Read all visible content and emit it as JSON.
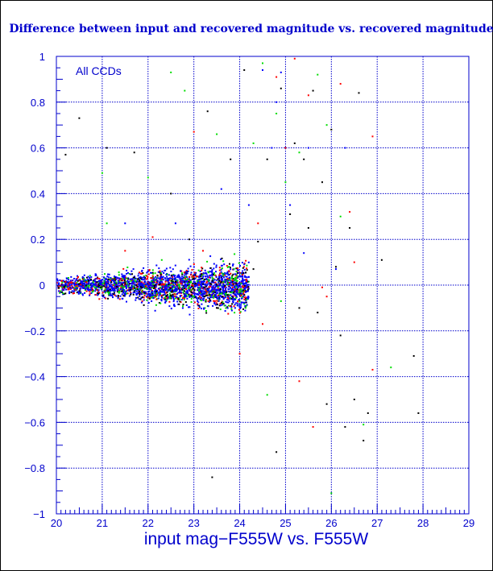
{
  "chart_data": {
    "type": "scatter",
    "title": "Difference between input and recovered magnitude vs. recovered magnitude",
    "xlabel": "input mag−F555W vs. F555W",
    "ylabel": "",
    "annotation": "All CCDs",
    "xlim": [
      20,
      29
    ],
    "ylim": [
      -1,
      1
    ],
    "x_ticks": [
      "20",
      "21",
      "22",
      "23",
      "24",
      "25",
      "26",
      "27",
      "28",
      "29"
    ],
    "y_ticks": [
      "−1",
      "−0.8",
      "−0.6",
      "−0.4",
      "−0.2",
      "0",
      "0.2",
      "0.4",
      "0.6",
      "0.8",
      "1"
    ],
    "grid": true,
    "colors": {
      "axis": "#0000cc",
      "grid": "#0000cc",
      "text": "#0000cc",
      "blue": "#0000ff",
      "green": "#00dd00",
      "red": "#ff0000",
      "black": "#000000"
    },
    "series": [
      {
        "color": "black",
        "points": [
          [
            20.2,
            0.57
          ],
          [
            20.5,
            0.73
          ],
          [
            21.1,
            0.6
          ],
          [
            21.7,
            0.58
          ],
          [
            22.5,
            0.4
          ],
          [
            22.9,
            0.2
          ],
          [
            23.3,
            0.76
          ],
          [
            24.1,
            0.94
          ],
          [
            24.4,
            0.19
          ],
          [
            24.6,
            0.55
          ],
          [
            24.9,
            0.86
          ],
          [
            25.2,
            0.62
          ],
          [
            25.4,
            0.55
          ],
          [
            25.6,
            0.85
          ],
          [
            25.7,
            -0.12
          ],
          [
            25.8,
            0.45
          ],
          [
            26.0,
            0.68
          ],
          [
            26.2,
            -0.22
          ],
          [
            26.4,
            0.25
          ],
          [
            26.6,
            0.84
          ],
          [
            26.8,
            -0.56
          ],
          [
            27.1,
            0.11
          ],
          [
            23.4,
            -0.84
          ],
          [
            24.8,
            -0.73
          ],
          [
            25.3,
            -0.1
          ],
          [
            25.9,
            -0.52
          ],
          [
            26.3,
            -0.62
          ],
          [
            26.5,
            -0.5
          ],
          [
            26.7,
            -0.68
          ],
          [
            27.8,
            -0.31
          ],
          [
            27.9,
            -0.56
          ],
          [
            25.1,
            0.31
          ],
          [
            26.1,
            0.08
          ],
          [
            24.3,
            0.07
          ],
          [
            25.5,
            0.25
          ],
          [
            23.8,
            0.55
          ]
        ]
      },
      {
        "color": "green",
        "points": [
          [
            22.5,
            0.93
          ],
          [
            22.8,
            0.85
          ],
          [
            24.5,
            0.97
          ],
          [
            24.8,
            0.75
          ],
          [
            24.3,
            0.62
          ],
          [
            25.0,
            0.45
          ],
          [
            25.3,
            0.58
          ],
          [
            21.1,
            0.27
          ],
          [
            21.0,
            0.49
          ],
          [
            22.0,
            0.47
          ],
          [
            24.9,
            -0.07
          ],
          [
            24.6,
            -0.48
          ],
          [
            25.9,
            0.7
          ],
          [
            26.2,
            0.3
          ],
          [
            26.7,
            -0.61
          ],
          [
            27.3,
            -0.36
          ],
          [
            26.0,
            -0.91
          ],
          [
            23.5,
            0.66
          ],
          [
            25.7,
            0.92
          ],
          [
            22.3,
            0.11
          ]
        ]
      },
      {
        "color": "red",
        "points": [
          [
            23.0,
            0.67
          ],
          [
            24.4,
            0.27
          ],
          [
            24.8,
            0.91
          ],
          [
            25.2,
            0.99
          ],
          [
            25.5,
            0.83
          ],
          [
            25.8,
            -0.01
          ],
          [
            26.2,
            0.88
          ],
          [
            26.4,
            0.32
          ],
          [
            26.5,
            0.1
          ],
          [
            25.3,
            -0.42
          ],
          [
            25.6,
            -0.62
          ],
          [
            26.9,
            -0.37
          ],
          [
            24.5,
            -0.17
          ],
          [
            24.0,
            -0.3
          ],
          [
            21.5,
            0.15
          ],
          [
            22.1,
            0.21
          ],
          [
            23.2,
            0.15
          ],
          [
            25.9,
            -0.05
          ],
          [
            26.9,
            0.65
          ],
          [
            25.0,
            0.6
          ]
        ]
      },
      {
        "color": "blue",
        "points": [
          [
            24.5,
            0.94
          ],
          [
            24.9,
            0.93
          ],
          [
            25.5,
            0.6
          ],
          [
            24.7,
            0.6
          ],
          [
            25.1,
            0.35
          ],
          [
            23.6,
            0.42
          ],
          [
            21.5,
            0.27
          ],
          [
            22.6,
            0.27
          ],
          [
            24.2,
            0.35
          ],
          [
            23.9,
            -0.1
          ],
          [
            25.4,
            0.14
          ],
          [
            26.1,
            0.07
          ],
          [
            24.8,
            0.8
          ],
          [
            26.3,
            0.6
          ]
        ]
      }
    ],
    "dense_band": {
      "x_start": 20.0,
      "x_end": 24.2,
      "y_center_start": 0.0,
      "y_center_end": -0.01,
      "spread_start": 0.018,
      "spread_end": 0.06
    }
  }
}
